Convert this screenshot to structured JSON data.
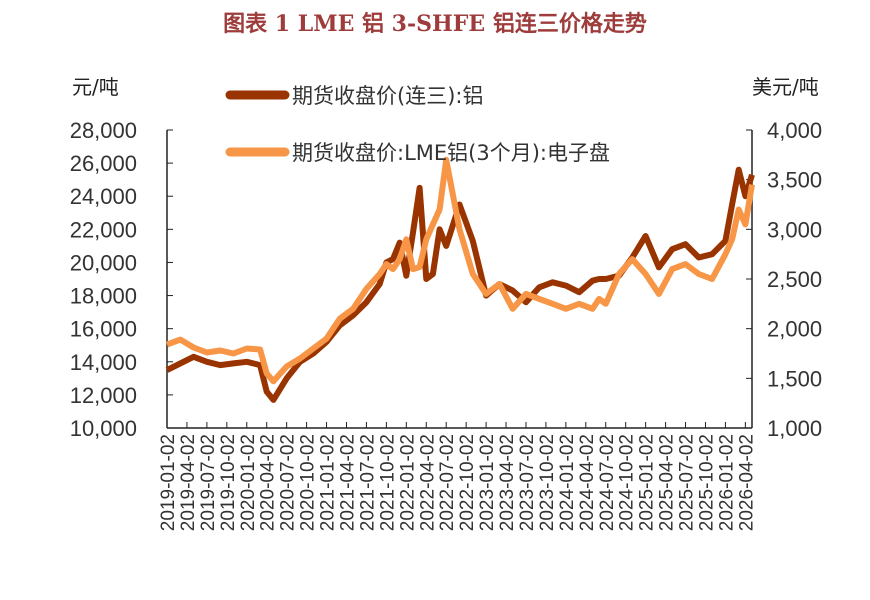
{
  "title": "图表 1 LME 铝 3-SHFE 铝连三价格走势",
  "chart_data": {
    "type": "line",
    "title": "图表 1 LME 铝 3-SHFE 铝连三价格走势",
    "ylabel_left": "元/吨",
    "ylabel_right": "美元/吨",
    "ylim_left": [
      10000,
      28000
    ],
    "ylim_right": [
      1000,
      4000
    ],
    "yticks_left": [
      "10,000",
      "12,000",
      "14,000",
      "16,000",
      "18,000",
      "20,000",
      "22,000",
      "24,000",
      "26,000",
      "28,000"
    ],
    "yticks_right": [
      "1,000",
      "1,500",
      "2,000",
      "2,500",
      "3,000",
      "3,500",
      "4,000"
    ],
    "x_unit": "months since 2019-01",
    "xlim": [
      0,
      88
    ],
    "xticks": [
      "2019-01-02",
      "2019-04-02",
      "2019-07-02",
      "2019-10-02",
      "2020-01-02",
      "2020-04-02",
      "2020-07-02",
      "2020-10-02",
      "2021-01-02",
      "2021-04-02",
      "2021-07-02",
      "2021-10-02",
      "2022-01-02",
      "2022-04-02",
      "2022-07-02",
      "2022-10-02",
      "2023-01-02",
      "2023-04-02",
      "2023-07-02",
      "2023-10-02",
      "2024-01-02",
      "2024-04-02",
      "2024-07-02",
      "2024-10-02",
      "2025-01-02",
      "2025-04-02",
      "2025-07-02",
      "2025-10-02",
      "2026-01-02",
      "2026-04-02"
    ],
    "legend_placement": "top-center",
    "series": [
      {
        "name": "期货收盘价(连三):铝",
        "axis": "left",
        "color": "#993300",
        "x": [
          0,
          2,
          4,
          6,
          8,
          10,
          12,
          14,
          15,
          16,
          18,
          20,
          22,
          24,
          26,
          28,
          30,
          32,
          33,
          34,
          35,
          36,
          37,
          38,
          39,
          40,
          41,
          42,
          44,
          46,
          48,
          50,
          52,
          54,
          56,
          58,
          60,
          62,
          64,
          65,
          66,
          68,
          70,
          72,
          74,
          76,
          78,
          80,
          82,
          84,
          85,
          86,
          87,
          88
        ],
        "y": [
          13500,
          13900,
          14300,
          14000,
          13800,
          13900,
          14000,
          13800,
          12200,
          11700,
          13000,
          14000,
          14500,
          15200,
          16200,
          16800,
          17600,
          18700,
          20000,
          20200,
          21200,
          19200,
          21800,
          24500,
          19000,
          19300,
          22000,
          21000,
          23500,
          21300,
          18000,
          18700,
          18300,
          17600,
          18500,
          18800,
          18600,
          18200,
          18900,
          19000,
          19000,
          19200,
          20300,
          21600,
          19700,
          20800,
          21100,
          20300,
          20500,
          21300,
          23500,
          25600,
          24000,
          25300
        ]
      },
      {
        "name": "期货收盘价:LME铝(3个月):电子盘",
        "axis": "right",
        "color": "#F79646",
        "x": [
          0,
          2,
          4,
          6,
          8,
          10,
          12,
          14,
          15,
          16,
          18,
          20,
          22,
          24,
          26,
          28,
          30,
          32,
          33,
          34,
          35,
          36,
          37,
          38,
          39,
          40,
          41,
          42,
          44,
          46,
          48,
          50,
          52,
          54,
          56,
          58,
          60,
          62,
          64,
          65,
          66,
          68,
          70,
          72,
          74,
          76,
          78,
          80,
          82,
          84,
          85,
          86,
          87,
          88
        ],
        "y": [
          1840,
          1890,
          1810,
          1760,
          1780,
          1750,
          1800,
          1790,
          1550,
          1470,
          1620,
          1700,
          1800,
          1900,
          2100,
          2200,
          2400,
          2550,
          2650,
          2600,
          2700,
          2900,
          2600,
          2620,
          2900,
          3050,
          3200,
          3700,
          3000,
          2550,
          2350,
          2450,
          2200,
          2350,
          2300,
          2250,
          2200,
          2250,
          2200,
          2300,
          2250,
          2550,
          2700,
          2550,
          2350,
          2600,
          2650,
          2550,
          2500,
          2750,
          2900,
          3200,
          3050,
          3450
        ]
      }
    ]
  }
}
